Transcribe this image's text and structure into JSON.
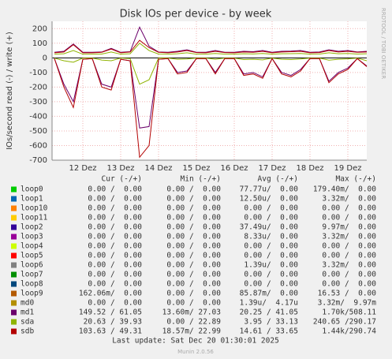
{
  "chart_data": {
    "type": "line",
    "title": "Disk IOs per device - by week",
    "y_label": "IOs/second read (-) / write (+)",
    "side_label": "RRDTOOL / TOBI OETIKER",
    "footer": "Munin 2.0.56",
    "last_update": "Last update: Sat Dec 20 01:30:01 2025",
    "columns": [
      "Cur (-/+)",
      "Min (-/+)",
      "Avg (-/+)",
      "Max (-/+)"
    ],
    "categories": [
      null,
      null,
      null,
      "12 Dez",
      null,
      null,
      null,
      "13 Dez",
      null,
      null,
      null,
      "14 Dez",
      null,
      null,
      null,
      "15 Dez",
      null,
      null,
      null,
      "16 Dez",
      null,
      null,
      null,
      "17 Dez",
      null,
      null,
      null,
      "18 Dez",
      null,
      null,
      null,
      "19 Dez",
      null,
      null
    ],
    "ylim": [
      -700,
      250
    ],
    "yticks": [
      -700,
      -600,
      -500,
      -400,
      -300,
      -200,
      -100,
      0,
      100,
      200
    ],
    "grid": true,
    "series": [
      {
        "name": "loop0",
        "color": "#00cc00",
        "cur": "0.00 /  0.00",
        "min": "0.00 /  0.00",
        "avg": "77.77u/  0.00",
        "max": "179.40m/  0.00"
      },
      {
        "name": "loop1",
        "color": "#0066b3",
        "cur": "0.00 /  0.00",
        "min": "0.00 /  0.00",
        "avg": "12.50u/  0.00",
        "max": "3.32m/  0.00"
      },
      {
        "name": "loop10",
        "color": "#ff8000",
        "cur": "0.00 /  0.00",
        "min": "0.00 /  0.00",
        "avg": "0.00 /  0.00",
        "max": "0.00 /  0.00"
      },
      {
        "name": "loop11",
        "color": "#ffcc00",
        "cur": "0.00 /  0.00",
        "min": "0.00 /  0.00",
        "avg": "0.00 /  0.00",
        "max": "0.00 /  0.00"
      },
      {
        "name": "loop2",
        "color": "#330099",
        "cur": "0.00 /  0.00",
        "min": "0.00 /  0.00",
        "avg": "37.49u/  0.00",
        "max": "9.97m/  0.00"
      },
      {
        "name": "loop3",
        "color": "#990099",
        "cur": "0.00 /  0.00",
        "min": "0.00 /  0.00",
        "avg": "8.33u/  0.00",
        "max": "3.32m/  0.00"
      },
      {
        "name": "loop4",
        "color": "#ccff00",
        "cur": "0.00 /  0.00",
        "min": "0.00 /  0.00",
        "avg": "0.00 /  0.00",
        "max": "0.00 /  0.00"
      },
      {
        "name": "loop5",
        "color": "#ff0000",
        "cur": "0.00 /  0.00",
        "min": "0.00 /  0.00",
        "avg": "0.00 /  0.00",
        "max": "0.00 /  0.00"
      },
      {
        "name": "loop6",
        "color": "#808080",
        "cur": "0.00 /  0.00",
        "min": "0.00 /  0.00",
        "avg": "1.39u/  0.00",
        "max": "3.32m/  0.00"
      },
      {
        "name": "loop7",
        "color": "#008f00",
        "cur": "0.00 /  0.00",
        "min": "0.00 /  0.00",
        "avg": "0.00 /  0.00",
        "max": "0.00 /  0.00"
      },
      {
        "name": "loop8",
        "color": "#00487d",
        "cur": "0.00 /  0.00",
        "min": "0.00 /  0.00",
        "avg": "0.00 /  0.00",
        "max": "0.00 /  0.00"
      },
      {
        "name": "loop9",
        "color": "#b35a00",
        "cur": "162.06m/  0.00",
        "min": "0.00 /  0.00",
        "avg": "85.87m/  0.00",
        "max": "16.53 /  0.00"
      },
      {
        "name": "md0",
        "color": "#b38f00",
        "cur": "0.00 /  0.00",
        "min": "0.00 /  0.00",
        "avg": "1.39u/  4.17u",
        "max": "3.32m/  9.97m"
      },
      {
        "name": "md1",
        "color": "#6b006b",
        "cur": "149.52 / 61.05",
        "min": "13.60m/ 27.03",
        "avg": "20.25 / 41.05",
        "max": "1.70k/508.11",
        "read": [
          -5,
          -180,
          -300,
          -10,
          -5,
          -180,
          -200,
          -10,
          -20,
          -480,
          -470,
          -10,
          -5,
          -100,
          -90,
          -5,
          -5,
          -100,
          -5,
          -5,
          -110,
          -100,
          -130,
          -5,
          -100,
          -120,
          -80,
          -5,
          -5,
          -160,
          -100,
          -70,
          -5,
          -55
        ],
        "write": [
          38,
          45,
          95,
          38,
          38,
          40,
          65,
          38,
          42,
          210,
          80,
          40,
          38,
          45,
          55,
          38,
          38,
          50,
          38,
          38,
          45,
          42,
          50,
          38,
          45,
          46,
          50,
          38,
          40,
          55,
          45,
          50,
          40,
          45
        ]
      },
      {
        "name": "sda",
        "color": "#8fb300",
        "cur": "20.63 / 39.93",
        "min": "0.00 / 22.89",
        "avg": "3.95 / 33.13",
        "max": "240.65 /290.17",
        "read": [
          -2,
          -20,
          -30,
          -2,
          -2,
          -15,
          -20,
          -2,
          -5,
          -180,
          -150,
          -2,
          -2,
          -10,
          -8,
          -2,
          -2,
          -10,
          -2,
          -2,
          -12,
          -10,
          -14,
          -2,
          -10,
          -12,
          -8,
          -2,
          -2,
          -16,
          -10,
          -7,
          -2,
          -20
        ],
        "write": [
          25,
          28,
          50,
          25,
          25,
          26,
          40,
          25,
          28,
          100,
          50,
          26,
          25,
          28,
          35,
          25,
          25,
          30,
          25,
          25,
          28,
          27,
          30,
          25,
          28,
          29,
          30,
          25,
          26,
          35,
          28,
          30,
          26,
          28
        ]
      },
      {
        "name": "sdb",
        "color": "#b30000",
        "cur": "103.63 / 49.31",
        "min": "18.57m/ 22.99",
        "avg": "14.61 / 33.65",
        "max": "1.44k/290.74",
        "read": [
          -5,
          -200,
          -340,
          -10,
          -5,
          -200,
          -220,
          -10,
          -20,
          -680,
          -600,
          -10,
          -5,
          -110,
          -100,
          -5,
          -5,
          -110,
          -5,
          -5,
          -120,
          -110,
          -140,
          -5,
          -110,
          -130,
          -90,
          -5,
          -5,
          -170,
          -110,
          -80,
          -5,
          -60
        ],
        "write": [
          35,
          40,
          90,
          35,
          35,
          38,
          60,
          35,
          40,
          120,
          70,
          38,
          35,
          40,
          50,
          36,
          35,
          45,
          36,
          35,
          40,
          38,
          45,
          35,
          40,
          42,
          45,
          35,
          36,
          50,
          40,
          45,
          38,
          40
        ]
      }
    ]
  }
}
